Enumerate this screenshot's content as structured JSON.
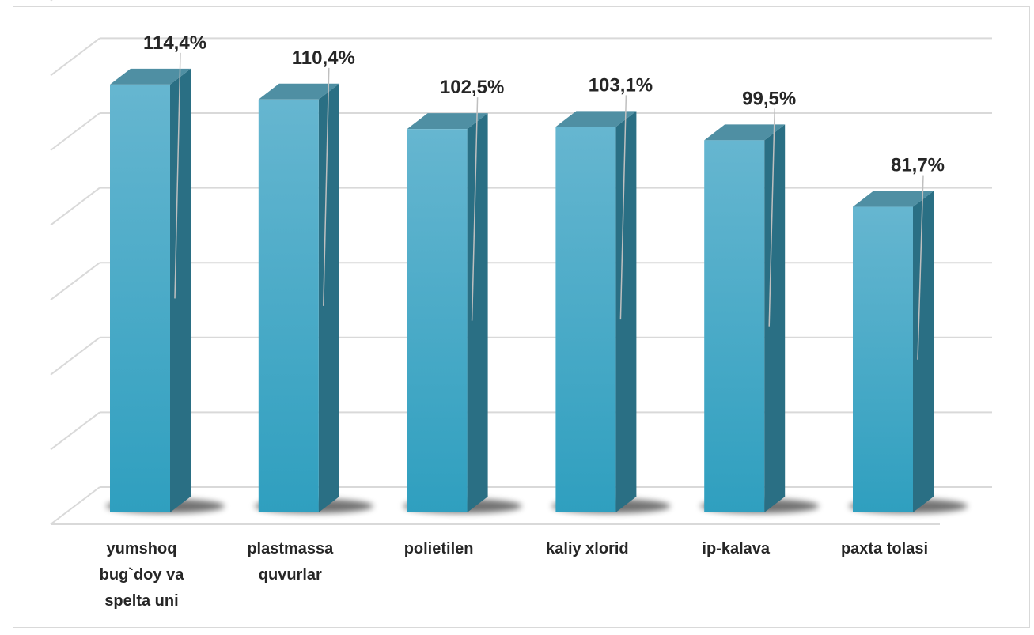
{
  "chart_data": {
    "type": "bar",
    "categories": [
      [
        "yumshoq",
        "bug`doy va",
        "spelta uni"
      ],
      [
        "plastmassa",
        "quvurlar"
      ],
      [
        "polietilen"
      ],
      [
        "kaliy xlorid"
      ],
      [
        "ip-kalava"
      ],
      [
        "paxta tolasi"
      ]
    ],
    "values": [
      114.4,
      110.4,
      102.5,
      103.1,
      99.5,
      81.7
    ],
    "labels": [
      "114,4%",
      "110,4%",
      "102,5%",
      "103,1%",
      "99,5%",
      "81,7%"
    ],
    "ylim": [
      0,
      140
    ],
    "grid": true,
    "legend": "none",
    "colors": {
      "bar_front_top": "#66b6d0",
      "bar_front_bottom": "#2f9fbf",
      "bar_side": "#2a6f84",
      "bar_top": "#4f8fa3",
      "grid": "#d9d9d9",
      "label": "#262626"
    }
  }
}
